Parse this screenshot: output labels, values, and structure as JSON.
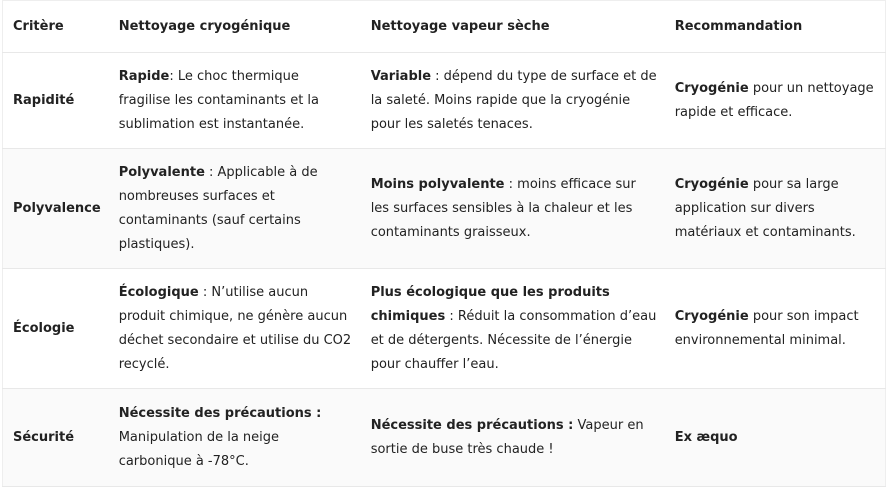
{
  "headers": [
    "Critère",
    "Nettoyage cryogénique",
    "Nettoyage vapeur sèche",
    "Recommandation"
  ],
  "rows": [
    {
      "criterion": "Rapidité",
      "cells": [
        {
          "bold": "Rapide",
          "text": ": Le choc thermique fragilise les contaminants et la sublimation est instantanée."
        },
        {
          "bold": "Variable",
          "text": " : dépend du type de surface et de la saleté. Moins rapide que la cryogénie pour les saletés tenaces."
        },
        {
          "bold": "Cryogénie",
          "text": " pour un nettoyage rapide et efficace."
        }
      ]
    },
    {
      "criterion": "Polyvalence",
      "cells": [
        {
          "bold": "Polyvalente",
          "text": " : Applicable à de nombreuses surfaces et contaminants (sauf certains plastiques)."
        },
        {
          "bold": "Moins polyvalente",
          "text": " : moins efficace sur les surfaces sensibles à la chaleur et les contaminants graisseux."
        },
        {
          "bold": "Cryogénie",
          "text": " pour sa large application sur divers matériaux et contaminants."
        }
      ]
    },
    {
      "criterion": "Écologie",
      "cells": [
        {
          "bold": "Écologique",
          "text": " : N’utilise aucun produit chimique, ne génère aucun déchet secondaire et utilise du CO2 recyclé."
        },
        {
          "bold": "Plus écologique que les produits chimiques",
          "text": " : Réduit la consommation d’eau et de détergents. Nécessite de l’énergie pour chauffer l’eau."
        },
        {
          "bold": "Cryogénie",
          "text": " pour son impact environnemental minimal."
        }
      ]
    },
    {
      "criterion": "Sécurité",
      "cells": [
        {
          "bold": "Nécessite des précautions :",
          "text": " Manipulation de la neige carbonique à -78°C."
        },
        {
          "bold": "Nécessite des précautions :",
          "text": " Vapeur en sortie de buse très chaude !"
        },
        {
          "bold": "Ex æquo",
          "text": ""
        }
      ]
    }
  ]
}
